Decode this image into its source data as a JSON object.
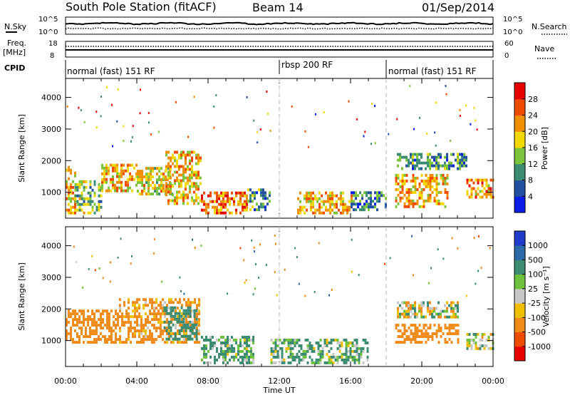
{
  "header": {
    "station": "South Pole Station (fitACF)",
    "beam": "Beam 14",
    "date": "01/Sep/2014"
  },
  "top_panels": {
    "nsky_label": "N.Sky",
    "nsearch_label": "N.Search",
    "freq_label_line1": "Freq.",
    "freq_label_line2": "[MHz]",
    "nave_label": "Nave",
    "cpid_label": "CPID",
    "noise_ticks_left": [
      "10^5",
      "10^0"
    ],
    "noise_ticks_right": [
      "10^5",
      "10^0"
    ],
    "freq_ticks_left": [
      "18",
      "8"
    ],
    "nave_ticks_right": [
      "60",
      "0"
    ],
    "cpid_modes": [
      {
        "label": "normal (fast) 151 RF",
        "start_hour": 0
      },
      {
        "label": "rbsp 200 RF",
        "start_hour": 12
      },
      {
        "label": "normal (fast) 151 RF",
        "start_hour": 18
      }
    ]
  },
  "x_axis": {
    "label": "Time UT",
    "ticks": [
      "00:00",
      "04:00",
      "08:00",
      "12:00",
      "16:00",
      "20:00",
      "00:00"
    ],
    "range_hours": [
      0,
      24
    ],
    "mode_change_hours": [
      12,
      18
    ]
  },
  "chart_data": [
    {
      "type": "heatmap",
      "panel": "power",
      "ylabel": "Slant Range [km]",
      "ylim": [
        180,
        4600
      ],
      "y_ticks": [
        1000,
        2000,
        3000,
        4000
      ],
      "colorbar_label": "Power [dB]",
      "colorbar_ticks": [
        4,
        8,
        12,
        16,
        20,
        24,
        28
      ],
      "colorbar_range": [
        0,
        32
      ],
      "colors": [
        "#0a1ee6",
        "#2350a0",
        "#3c8c74",
        "#7cc43c",
        "#f0d800",
        "#f09000",
        "#f04a00",
        "#e80000"
      ],
      "echo_regions": [
        {
          "t": [
            0,
            0.5
          ],
          "r": [
            300,
            1800
          ],
          "level": 20
        },
        {
          "t": [
            0.5,
            2
          ],
          "r": [
            300,
            1300
          ],
          "level": 14
        },
        {
          "t": [
            2,
            4
          ],
          "r": [
            1000,
            1900
          ],
          "level": 20
        },
        {
          "t": [
            4,
            6
          ],
          "r": [
            900,
            1800
          ],
          "level": 18
        },
        {
          "t": [
            5.6,
            7.6
          ],
          "r": [
            600,
            2300
          ],
          "level": 20
        },
        {
          "t": [
            7.6,
            10.2
          ],
          "r": [
            300,
            1000
          ],
          "level": 24
        },
        {
          "t": [
            10.2,
            11.4
          ],
          "r": [
            400,
            1100
          ],
          "level": 10
        },
        {
          "t": [
            13,
            16
          ],
          "r": [
            300,
            1000
          ],
          "level": 20
        },
        {
          "t": [
            16,
            18
          ],
          "r": [
            400,
            1000
          ],
          "level": 8
        },
        {
          "t": [
            18.5,
            21.5
          ],
          "r": [
            500,
            1500
          ],
          "level": 20
        },
        {
          "t": [
            18.6,
            22.5
          ],
          "r": [
            1700,
            2200
          ],
          "level": 10
        },
        {
          "t": [
            22.5,
            24
          ],
          "r": [
            800,
            1400
          ],
          "level": 22
        }
      ]
    },
    {
      "type": "heatmap",
      "panel": "velocity",
      "ylabel": "Slant Range [km]",
      "ylim": [
        180,
        4600
      ],
      "y_ticks": [
        1000,
        2000,
        3000,
        4000
      ],
      "colorbar_label": "Velocity [m s⁻¹]",
      "colorbar_ticks": [
        "1000",
        "500",
        "100",
        "25",
        "-25",
        "-100",
        "-500",
        "-1000"
      ],
      "colors": [
        "#1f3cc8",
        "#2c69a8",
        "#3c8c74",
        "#6ec23c",
        "#c8c8c8",
        "#f0c000",
        "#f08a18",
        "#f04c00",
        "#e80000"
      ],
      "echo_regions": [
        {
          "t": [
            0,
            3
          ],
          "r": [
            900,
            1900
          ],
          "level": -300
        },
        {
          "t": [
            3,
            7.5
          ],
          "r": [
            900,
            2300
          ],
          "level": -200
        },
        {
          "t": [
            5.5,
            7.4
          ],
          "r": [
            1000,
            2000
          ],
          "level": 300
        },
        {
          "t": [
            7.6,
            10.5
          ],
          "r": [
            250,
            1100
          ],
          "level": 150
        },
        {
          "t": [
            11.5,
            17
          ],
          "r": [
            250,
            1000
          ],
          "level": 150
        },
        {
          "t": [
            18.5,
            22
          ],
          "r": [
            900,
            1500
          ],
          "level": -300
        },
        {
          "t": [
            18.6,
            22
          ],
          "r": [
            1700,
            2200
          ],
          "level": 20
        },
        {
          "t": [
            22.5,
            24
          ],
          "r": [
            700,
            1200
          ],
          "level": 80
        }
      ]
    }
  ]
}
